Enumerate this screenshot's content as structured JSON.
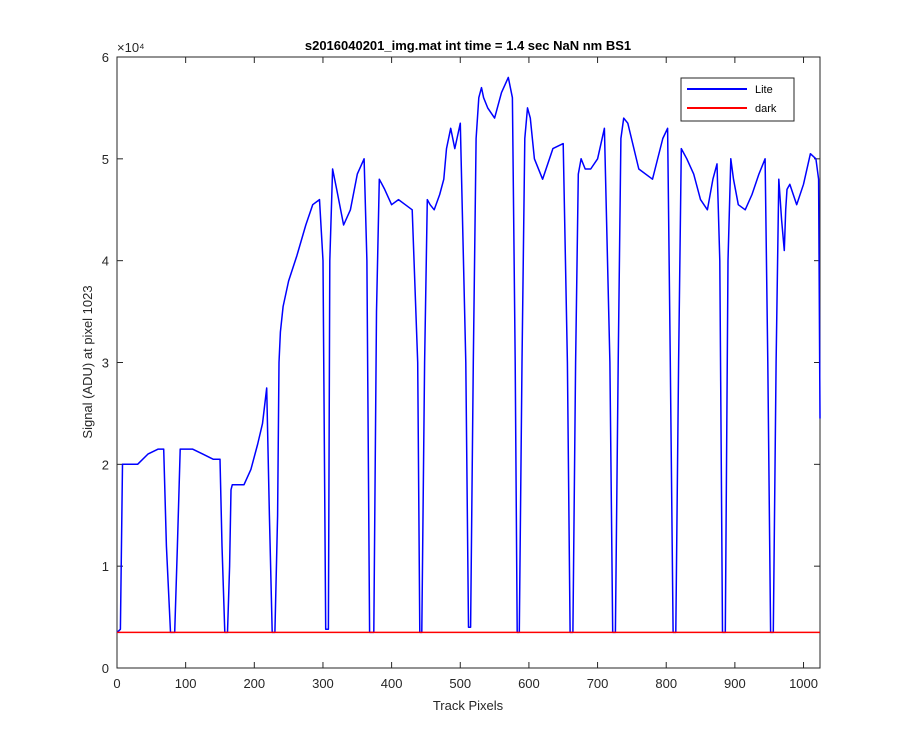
{
  "chart_data": {
    "type": "line",
    "title": "s2016040201_img.mat int time = 1.4 sec  NaN nm BS1",
    "xlabel": "Track Pixels",
    "ylabel": "Signal (ADU) at pixel 1023",
    "y_exponent_label": "×10⁴",
    "xlim": [
      0,
      1024
    ],
    "ylim": [
      0,
      60000
    ],
    "xticks": [
      0,
      100,
      200,
      300,
      400,
      500,
      600,
      700,
      800,
      900,
      1000
    ],
    "yticks": [
      0,
      10000,
      20000,
      30000,
      40000,
      50000,
      60000
    ],
    "ytick_labels": [
      "0",
      "1",
      "2",
      "3",
      "4",
      "5",
      "6"
    ],
    "grid": false,
    "legend_position": "top-right",
    "series": [
      {
        "name": "Lite",
        "color": "#0000ff",
        "x": [
          0,
          5,
          8,
          15,
          30,
          45,
          60,
          68,
          72,
          78,
          84,
          88,
          92,
          100,
          110,
          125,
          140,
          150,
          153,
          157,
          161,
          164,
          166,
          168,
          175,
          185,
          195,
          205,
          212,
          218,
          222,
          226,
          230,
          234,
          236,
          238,
          242,
          250,
          262,
          275,
          285,
          295,
          300,
          304,
          308,
          310,
          314,
          320,
          330,
          340,
          350,
          360,
          364,
          368,
          374,
          378,
          382,
          390,
          400,
          410,
          420,
          430,
          438,
          441,
          444,
          448,
          452,
          456,
          462,
          470,
          476,
          480,
          486,
          492,
          500,
          508,
          512,
          515,
          519,
          523,
          527,
          531,
          534,
          540,
          550,
          560,
          570,
          576,
          580,
          583,
          586,
          590,
          594,
          598,
          602,
          608,
          620,
          635,
          650,
          656,
          660,
          664,
          668,
          672,
          676,
          682,
          690,
          700,
          710,
          718,
          722,
          726,
          730,
          734,
          738,
          744,
          760,
          780,
          795,
          802,
          806,
          810,
          814,
          818,
          822,
          830,
          840,
          850,
          860,
          868,
          874,
          878,
          882,
          886,
          890,
          894,
          898,
          905,
          915,
          925,
          935,
          944,
          948,
          952,
          956,
          960,
          964,
          968,
          972,
          974,
          976,
          980,
          990,
          1000,
          1010,
          1018,
          1022,
          1024
        ],
        "values": [
          3500,
          3800,
          20000,
          20000,
          20000,
          21000,
          21500,
          21500,
          12000,
          3500,
          3500,
          12000,
          21500,
          21500,
          21500,
          21000,
          20500,
          20500,
          12000,
          3500,
          3500,
          10000,
          17500,
          18000,
          18000,
          18000,
          19500,
          22000,
          24000,
          27500,
          15000,
          3500,
          3500,
          15000,
          30000,
          33000,
          35500,
          38000,
          40500,
          43500,
          45500,
          46000,
          40000,
          3800,
          3800,
          40000,
          49000,
          47000,
          43500,
          45000,
          48500,
          50000,
          40000,
          3500,
          3500,
          35000,
          48000,
          47000,
          45500,
          46000,
          45500,
          45000,
          30000,
          3500,
          3500,
          30000,
          46000,
          45500,
          45000,
          46500,
          48000,
          51000,
          53000,
          51000,
          53500,
          30000,
          4000,
          4000,
          30000,
          52000,
          56000,
          57000,
          56000,
          55000,
          54000,
          56500,
          58000,
          56000,
          30000,
          3500,
          3500,
          30000,
          52000,
          55000,
          54000,
          50000,
          48000,
          51000,
          51500,
          30000,
          3500,
          3500,
          30000,
          48500,
          50000,
          49000,
          49000,
          50000,
          53000,
          30000,
          3500,
          3500,
          30000,
          52000,
          54000,
          53500,
          49000,
          48000,
          52000,
          53000,
          30000,
          3500,
          3500,
          30000,
          51000,
          50000,
          48500,
          46000,
          45000,
          48000,
          49500,
          40000,
          3500,
          3500,
          40000,
          50000,
          48000,
          45500,
          45000,
          46500,
          48500,
          50000,
          30000,
          3500,
          3500,
          30000,
          48000,
          44000,
          41000,
          45000,
          47000,
          47500,
          45500,
          47500,
          50500,
          50000,
          48000,
          24500
        ]
      },
      {
        "name": "dark",
        "color": "#ff0000",
        "x": [
          0,
          1024
        ],
        "values": [
          3500,
          3500
        ]
      }
    ]
  }
}
